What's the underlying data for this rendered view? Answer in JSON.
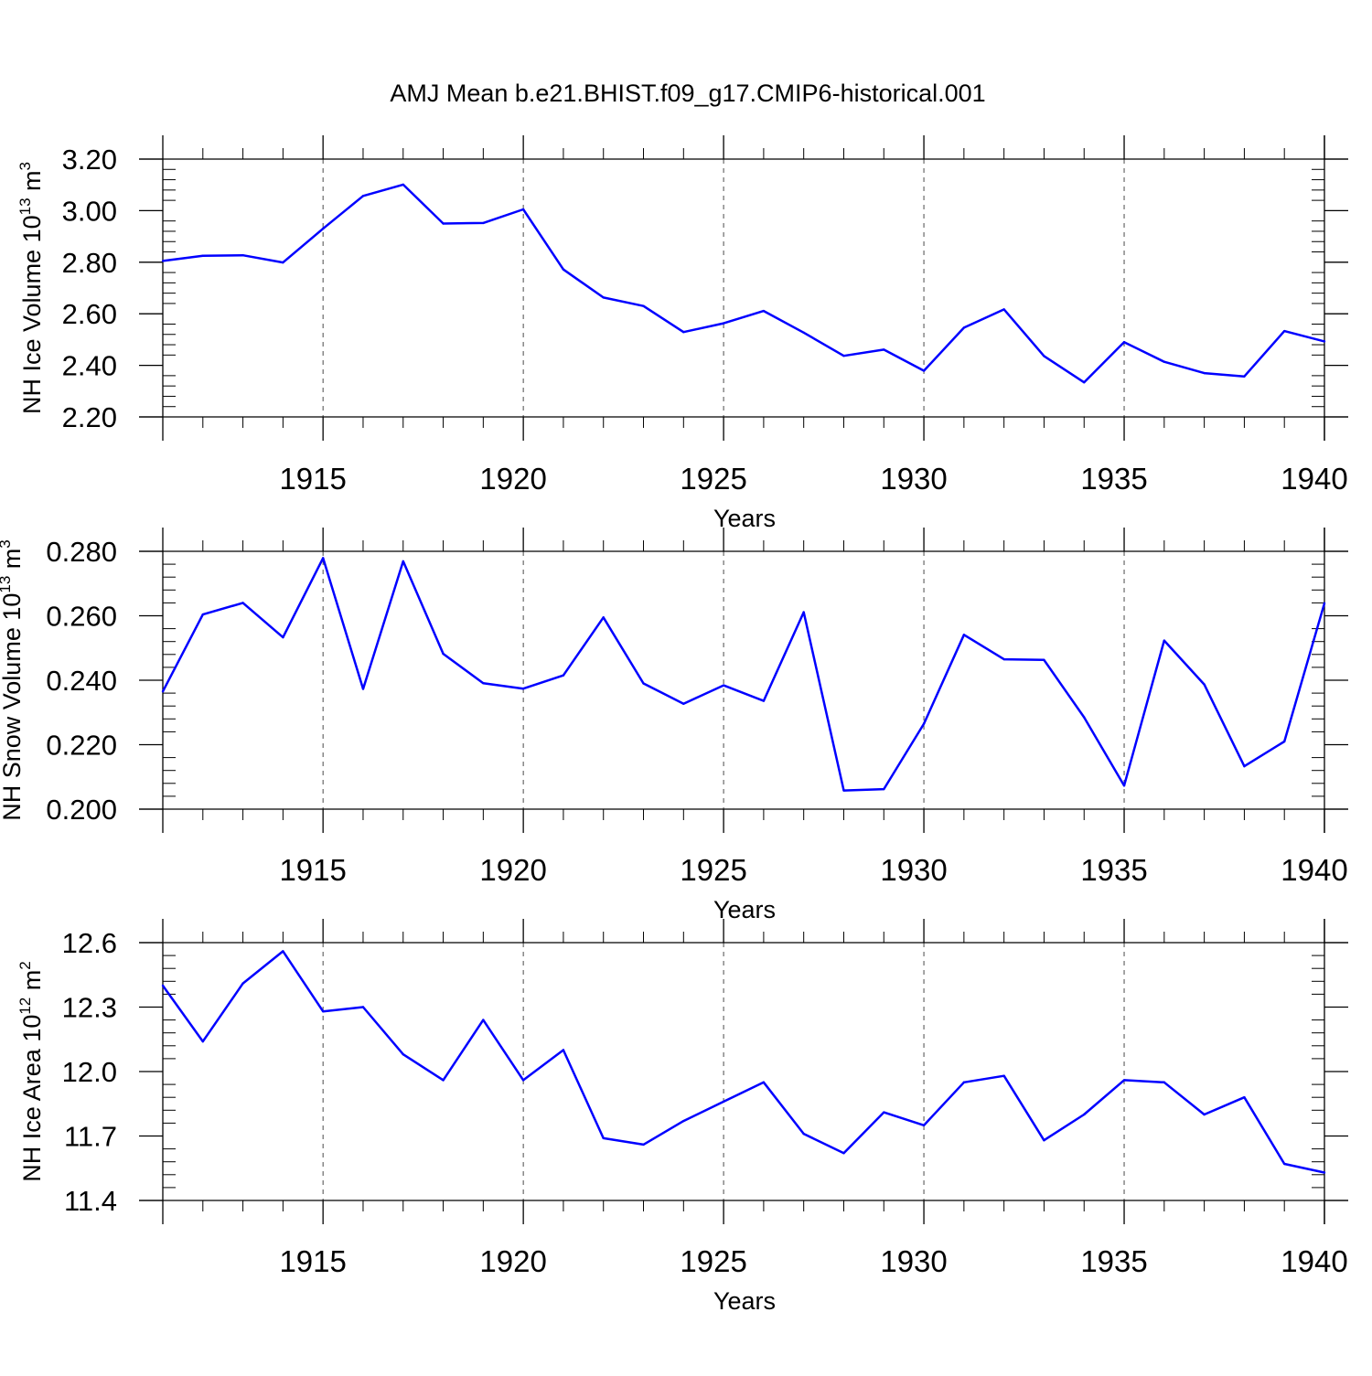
{
  "title": "AMJ Mean b.e21.BHIST.f09_g17.CMIP6-historical.001",
  "colors": {
    "line": "#0000ff",
    "axis": "#000000",
    "grid": "#000000"
  },
  "chart_data": [
    {
      "type": "line",
      "ylabel_main": "NH Ice Volume 10",
      "ylabel_exp": "13",
      "ylabel_unit": " m",
      "ylabel_unit_exp": "3",
      "xlabel": "Years",
      "xlim": [
        1911,
        1940
      ],
      "ylim": [
        2.2,
        3.2
      ],
      "x_ticks": [
        "1915",
        "1920",
        "1925",
        "1930",
        "1935",
        "1940"
      ],
      "y_ticks": [
        "2.20",
        "2.40",
        "2.60",
        "2.80",
        "3.00",
        "3.20"
      ],
      "grid": "vertical dashed at major x ticks",
      "x": [
        1911,
        1912,
        1913,
        1914,
        1915,
        1916,
        1917,
        1918,
        1919,
        1920,
        1921,
        1922,
        1923,
        1924,
        1925,
        1926,
        1927,
        1928,
        1929,
        1930,
        1931,
        1932,
        1933,
        1934,
        1935,
        1936,
        1937,
        1938,
        1939,
        1940
      ],
      "values": [
        2.805,
        2.825,
        2.827,
        2.799,
        2.93,
        3.057,
        3.101,
        2.95,
        2.952,
        3.005,
        2.772,
        2.663,
        2.63,
        2.529,
        2.563,
        2.611,
        2.527,
        2.437,
        2.461,
        2.379,
        2.546,
        2.617,
        2.436,
        2.334,
        2.49,
        2.414,
        2.37,
        2.357,
        2.533,
        2.493
      ]
    },
    {
      "type": "line",
      "ylabel_main": "NH Snow Volume 10",
      "ylabel_exp": "13",
      "ylabel_unit": " m",
      "ylabel_unit_exp": "3",
      "xlabel": "Years",
      "xlim": [
        1911,
        1940
      ],
      "ylim": [
        0.2,
        0.28
      ],
      "x_ticks": [
        "1915",
        "1920",
        "1925",
        "1930",
        "1935",
        "1940"
      ],
      "y_ticks": [
        "0.200",
        "0.220",
        "0.240",
        "0.260",
        "0.280"
      ],
      "grid": "vertical dashed at major x ticks",
      "x": [
        1911,
        1912,
        1913,
        1914,
        1915,
        1916,
        1917,
        1918,
        1919,
        1920,
        1921,
        1922,
        1923,
        1924,
        1925,
        1926,
        1927,
        1928,
        1929,
        1930,
        1931,
        1932,
        1933,
        1934,
        1935,
        1936,
        1937,
        1938,
        1939,
        1940
      ],
      "values": [
        0.2365,
        0.2604,
        0.264,
        0.2533,
        0.2779,
        0.2373,
        0.2769,
        0.2482,
        0.2391,
        0.2374,
        0.2415,
        0.2595,
        0.239,
        0.2327,
        0.2384,
        0.2336,
        0.2611,
        0.2058,
        0.2062,
        0.2265,
        0.2541,
        0.2465,
        0.2463,
        0.2285,
        0.2073,
        0.2523,
        0.2387,
        0.2133,
        0.221,
        0.2639
      ]
    },
    {
      "type": "line",
      "ylabel_main": "NH Ice Area 10",
      "ylabel_exp": "12",
      "ylabel_unit": " m",
      "ylabel_unit_exp": "2",
      "xlabel": "Years",
      "xlim": [
        1911,
        1940
      ],
      "ylim": [
        11.4,
        12.6
      ],
      "x_ticks": [
        "1915",
        "1920",
        "1925",
        "1930",
        "1935",
        "1940"
      ],
      "y_ticks": [
        "11.4",
        "11.7",
        "12.0",
        "12.3",
        "12.6"
      ],
      "grid": "vertical dashed at major x ticks",
      "x": [
        1911,
        1912,
        1913,
        1914,
        1915,
        1916,
        1917,
        1918,
        1919,
        1920,
        1921,
        1922,
        1923,
        1924,
        1925,
        1926,
        1927,
        1928,
        1929,
        1930,
        1931,
        1932,
        1933,
        1934,
        1935,
        1936,
        1937,
        1938,
        1939,
        1940
      ],
      "values": [
        12.4,
        12.14,
        12.41,
        12.56,
        12.28,
        12.3,
        12.08,
        11.96,
        12.24,
        11.96,
        12.1,
        11.69,
        11.66,
        11.77,
        11.86,
        11.95,
        11.71,
        11.62,
        11.81,
        11.75,
        11.95,
        11.98,
        11.68,
        11.8,
        11.96,
        11.95,
        11.8,
        11.88,
        11.57,
        11.53
      ]
    }
  ]
}
